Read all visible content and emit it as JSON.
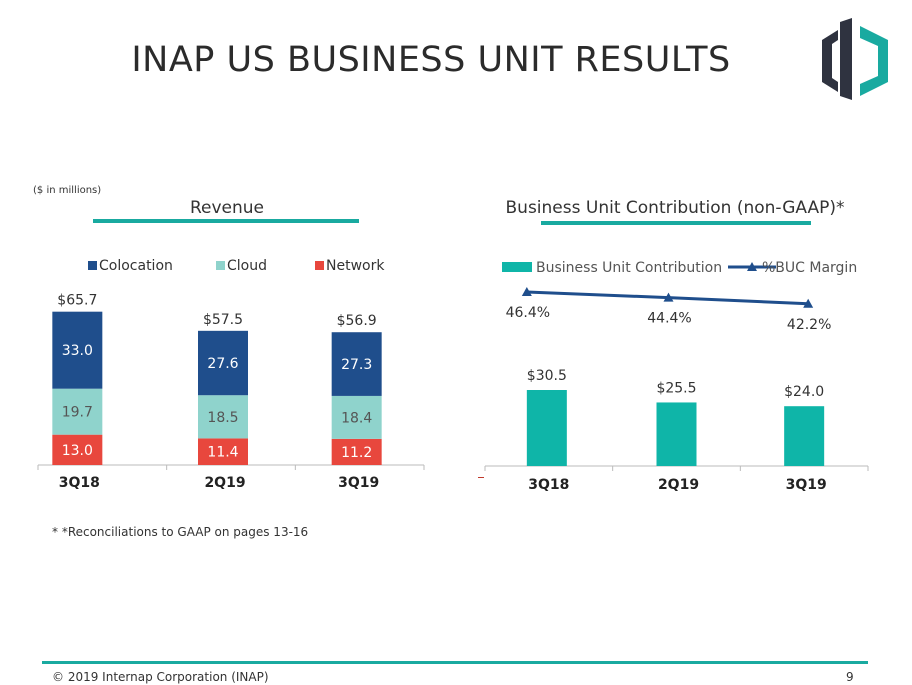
{
  "title": "INAP US BUSINESS UNIT RESULTS",
  "units_note": "($ in millions)",
  "footnote": "* *Reconciliations to GAAP on pages 13-16",
  "footer": {
    "copyright": "© 2019 Internap Corporation (INAP)",
    "page": "9"
  },
  "colors": {
    "colocation": "#1f4e8c",
    "cloud": "#8fd3cc",
    "network": "#e8473d",
    "buc_bar": "#0fb5a8",
    "margin_line": "#1f4e8c",
    "accent": "#19aaa0"
  },
  "chart_data": [
    {
      "type": "bar",
      "stacked": true,
      "title": "Revenue",
      "categories": [
        "3Q18",
        "2Q19",
        "3Q19"
      ],
      "series": [
        {
          "name": "Network",
          "values": [
            13.0,
            11.4,
            11.2
          ],
          "labels": [
            "13.0",
            "11.4",
            "11.2"
          ],
          "color": "#e8473d"
        },
        {
          "name": "Cloud",
          "values": [
            19.7,
            18.5,
            18.4
          ],
          "labels": [
            "19.7",
            "18.5",
            "18.4"
          ],
          "color": "#8fd3cc"
        },
        {
          "name": "Colocation",
          "values": [
            33.0,
            27.6,
            27.3
          ],
          "labels": [
            "33.0",
            "27.6",
            "27.3"
          ],
          "color": "#1f4e8c"
        }
      ],
      "legend": [
        "Colocation",
        "Cloud",
        "Network"
      ],
      "totals": [
        "$65.7",
        "$57.5",
        "$56.9"
      ],
      "ylim": [
        0,
        70
      ],
      "legend_position": "top"
    },
    {
      "type": "bar",
      "title": "Business Unit Contribution (non-GAAP)*",
      "categories": [
        "3Q18",
        "2Q19",
        "3Q19"
      ],
      "series": [
        {
          "name": "Business Unit Contribution",
          "values": [
            30.5,
            25.5,
            24.0
          ],
          "labels": [
            "$30.5",
            "$25.5",
            "$24.0"
          ],
          "color": "#0fb5a8",
          "kind": "bar"
        },
        {
          "name": "%BUC Margin",
          "values": [
            46.4,
            44.4,
            42.2
          ],
          "labels": [
            "46.4%",
            "44.4%",
            "42.2%"
          ],
          "color": "#1f4e8c",
          "kind": "line",
          "axis": "secondary"
        }
      ],
      "ylim": [
        0,
        40
      ],
      "y2lim": [
        0,
        50
      ],
      "legend_position": "top"
    }
  ]
}
